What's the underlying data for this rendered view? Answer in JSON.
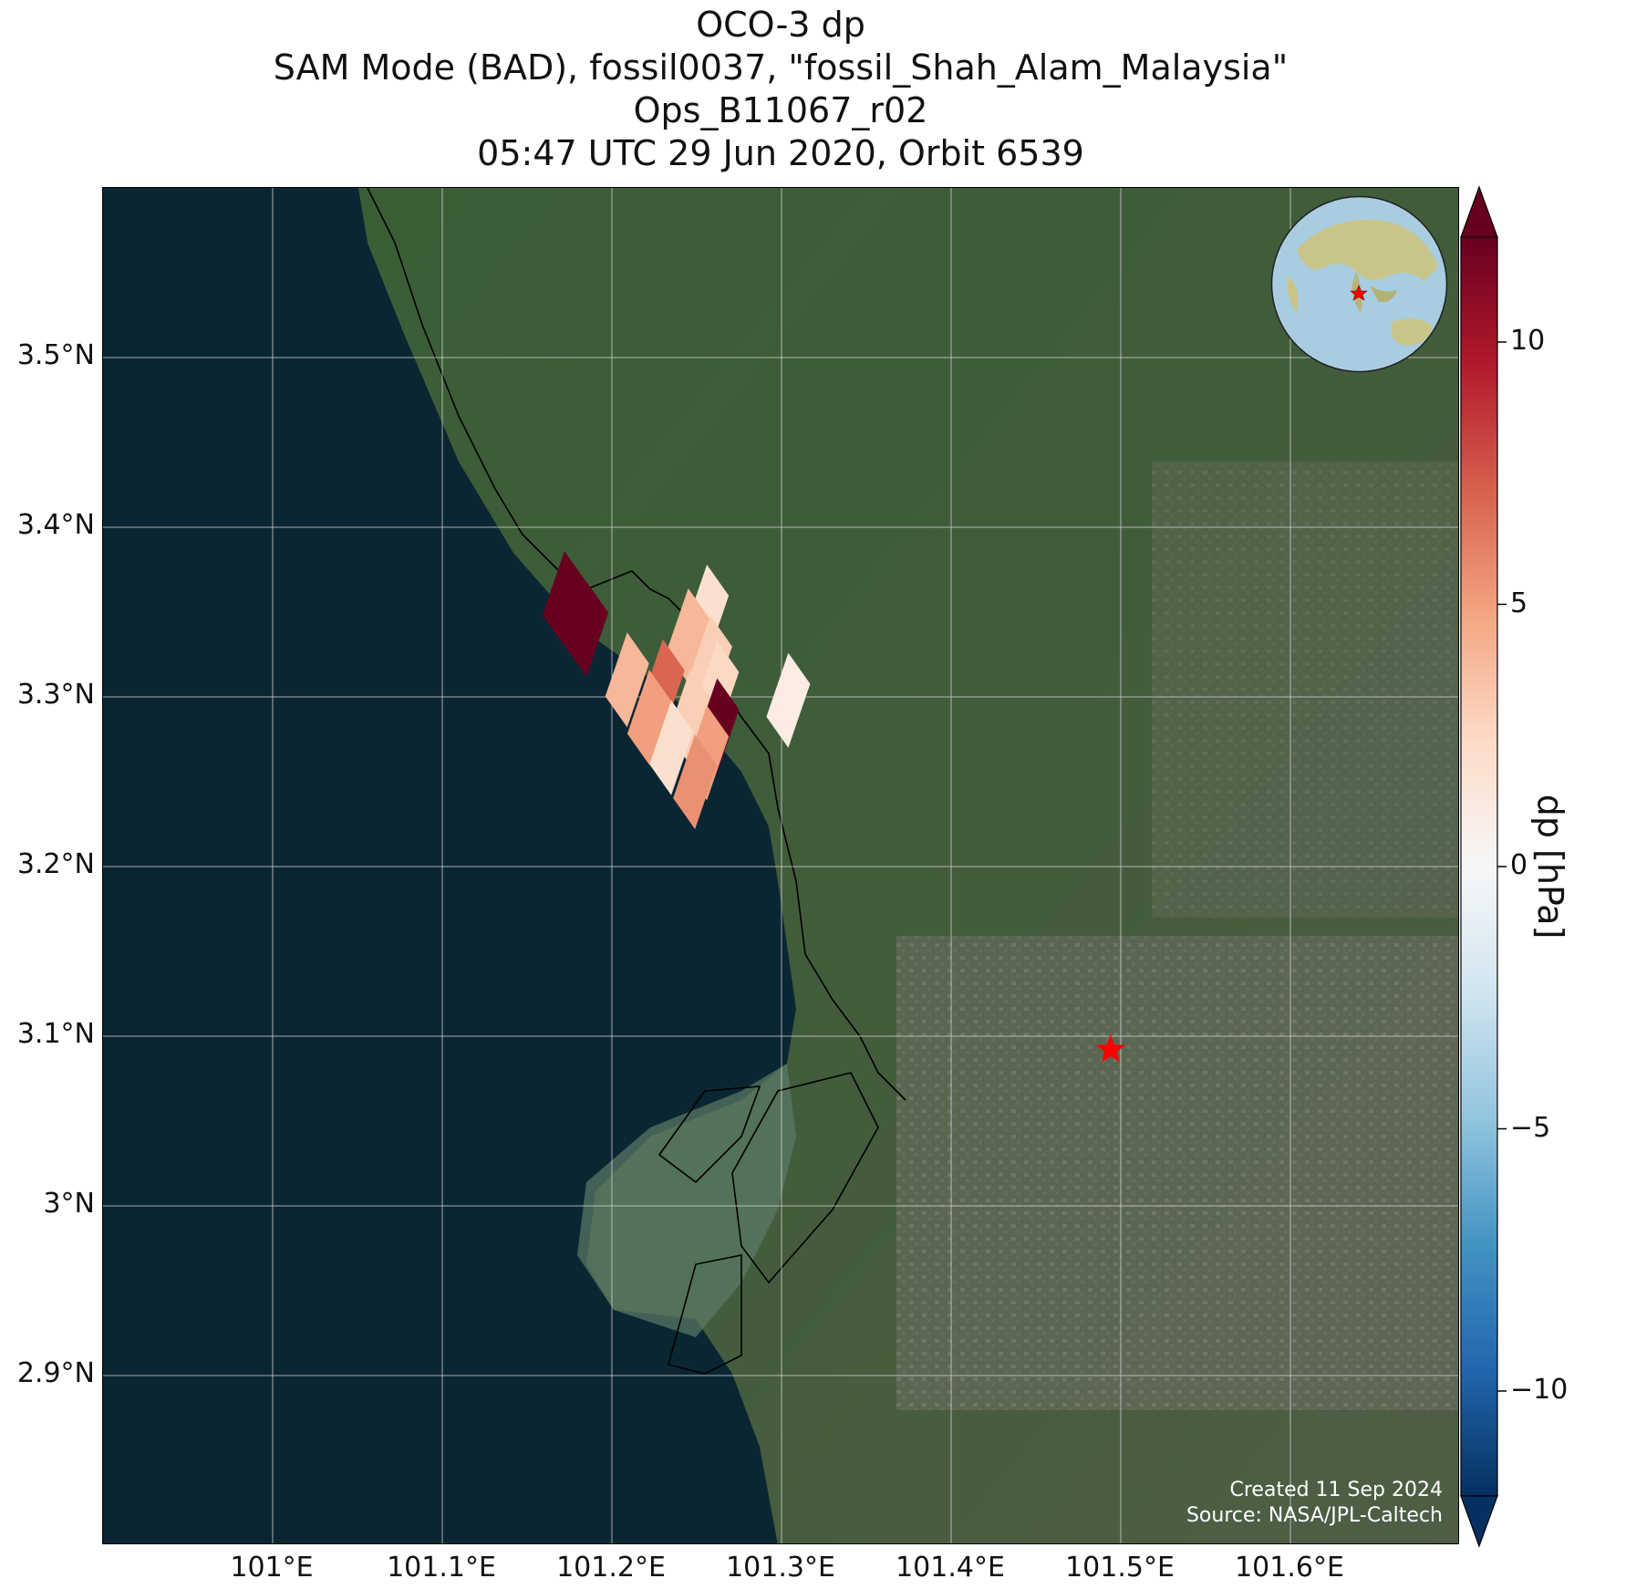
{
  "title": {
    "line1": "OCO-3 dp",
    "line2": "SAM Mode (BAD), fossil0037, \"fossil_Shah_Alam_Malaysia\"",
    "line3": "Ops_B11067_r02",
    "line4": "05:47 UTC 29 Jun 2020, Orbit 6539"
  },
  "map": {
    "lon_range": [
      100.9,
      101.7
    ],
    "lat_range": [
      2.8,
      3.6
    ],
    "x_ticks": [
      {
        "value": 101.0,
        "label": "101°E"
      },
      {
        "value": 101.1,
        "label": "101.1°E"
      },
      {
        "value": 101.2,
        "label": "101.2°E"
      },
      {
        "value": 101.3,
        "label": "101.3°E"
      },
      {
        "value": 101.4,
        "label": "101.4°E"
      },
      {
        "value": 101.5,
        "label": "101.5°E"
      },
      {
        "value": 101.6,
        "label": "101.6°E"
      }
    ],
    "y_ticks": [
      {
        "value": 2.9,
        "label": "2.9°N"
      },
      {
        "value": 3.0,
        "label": "3°N"
      },
      {
        "value": 3.1,
        "label": "3.1°N"
      },
      {
        "value": 3.2,
        "label": "3.2°N"
      },
      {
        "value": 3.3,
        "label": "3.3°N"
      },
      {
        "value": 3.4,
        "label": "3.4°N"
      },
      {
        "value": 3.5,
        "label": "3.5°N"
      }
    ],
    "target": {
      "lon": 101.494,
      "lat": 3.092,
      "marker": "star-icon",
      "color": "#ff0000"
    },
    "colors": {
      "ocean": "#0b2633",
      "land": "#3c5a3a",
      "grid": "#d8d8d8",
      "coast": "#000000"
    }
  },
  "chart_data": {
    "type": "heatmap",
    "variable": "dp",
    "units": "hPa",
    "colorbar": {
      "label": "dp [hPa]",
      "vmin": -12,
      "vmax": 12,
      "extend": "both",
      "cmap": "RdBu_r",
      "ticks": [
        {
          "value": 10,
          "label": "10"
        },
        {
          "value": 5,
          "label": "5"
        },
        {
          "value": 0,
          "label": "0"
        },
        {
          "value": -5,
          "label": "−5"
        },
        {
          "value": -10,
          "label": "−10"
        }
      ]
    },
    "soundings": [
      {
        "lon": 101.172,
        "lat": 3.358,
        "dp": 12
      },
      {
        "lon": 101.185,
        "lat": 3.34,
        "dp": 12
      },
      {
        "lon": 101.256,
        "lat": 3.35,
        "dp": 2
      },
      {
        "lon": 101.245,
        "lat": 3.336,
        "dp": 4
      },
      {
        "lon": 101.258,
        "lat": 3.32,
        "dp": 3
      },
      {
        "lon": 101.262,
        "lat": 3.305,
        "dp": 2.5
      },
      {
        "lon": 101.209,
        "lat": 3.31,
        "dp": 4
      },
      {
        "lon": 101.23,
        "lat": 3.306,
        "dp": 7
      },
      {
        "lon": 101.222,
        "lat": 3.288,
        "dp": 5
      },
      {
        "lon": 101.246,
        "lat": 3.288,
        "dp": 3
      },
      {
        "lon": 101.262,
        "lat": 3.283,
        "dp": 12
      },
      {
        "lon": 101.235,
        "lat": 3.27,
        "dp": 2
      },
      {
        "lon": 101.256,
        "lat": 3.267,
        "dp": 5
      },
      {
        "lon": 101.249,
        "lat": 3.25,
        "dp": 5.5
      },
      {
        "lon": 101.304,
        "lat": 3.298,
        "dp": 1
      }
    ]
  },
  "credit": {
    "created": "Created 11 Sep 2024",
    "source": "Source: NASA/JPL-Caltech"
  },
  "inset": {
    "description_icon": "globe-icon",
    "colors": {
      "ocean": "#a9cde0",
      "land": "#c9c58a",
      "marker": "#ff0000"
    }
  }
}
